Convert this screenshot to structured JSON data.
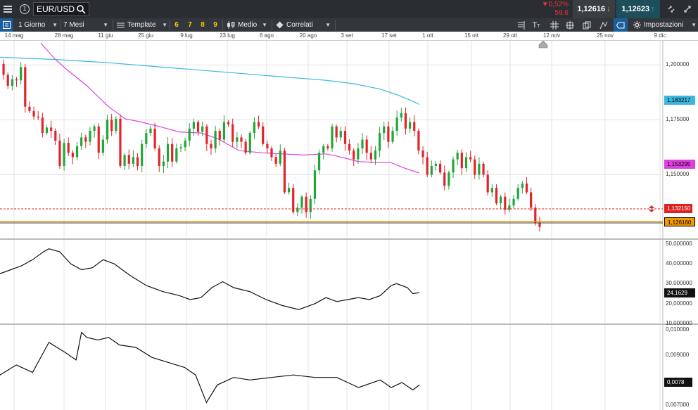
{
  "header": {
    "symbol": "EUR/USD",
    "change_pct": "▼0,52%",
    "change_pts": "59,6",
    "bid": "1,12616",
    "ask": "1,12623"
  },
  "toolbar": {
    "interval": "1 Giorno",
    "range": "7 Mesi",
    "template": "Template",
    "templates": [
      "6",
      "7",
      "8",
      "9"
    ],
    "chart_type": "Medio",
    "correlated": "Correlati",
    "settings": "Impostazioni"
  },
  "colors": {
    "bull": "#21a63a",
    "bear": "#e3232b",
    "ma200": "#3ab8e0",
    "ma50": "#e040e0",
    "last": "#f29a00"
  },
  "date_axis": [
    "14 mag",
    "28 mag",
    "11 giu",
    "25 giu",
    "9 lug",
    "23 lug",
    "6 ago",
    "20 ago",
    "3 set",
    "17 set",
    "1 ott",
    "15 ott",
    "29 ott",
    "12 nov",
    "25 nov",
    "9 dic"
  ],
  "price_axis": [
    "1,200000",
    "1,175000",
    "1,150000"
  ],
  "price_tags": {
    "ma200": "1,183217",
    "ma50": "1,153295",
    "high": "1,132150",
    "last": "1,126160"
  },
  "indicator1_axis": [
    "50,000000",
    "40,000000",
    "30,000000",
    "20,000000",
    "10,000000"
  ],
  "indicator1_value": "24,1629",
  "indicator2_axis": [
    "0,010000",
    "0,009000",
    "0,007000"
  ],
  "indicator2_value": "0,0078",
  "chart_data": [
    {
      "type": "candlestick",
      "y_range": [
        1.121,
        1.211
      ],
      "closes": [
        1.1955,
        1.1905,
        1.1935,
        1.193,
        1.199,
        1.181,
        1.179,
        1.1765,
        1.176,
        1.169,
        1.1715,
        1.17,
        1.1655,
        1.154,
        1.1645,
        1.16,
        1.158,
        1.163,
        1.167,
        1.165,
        1.17,
        1.172,
        1.16,
        1.166,
        1.175,
        1.17,
        1.1755,
        1.154,
        1.159,
        1.155,
        1.158,
        1.154,
        1.164,
        1.169,
        1.171,
        1.162,
        1.154,
        1.156,
        1.164,
        1.156,
        1.162,
        1.1625,
        1.1655,
        1.171,
        1.174,
        1.1695,
        1.172,
        1.164,
        1.162,
        1.17,
        1.166,
        1.174,
        1.173,
        1.165,
        1.167,
        1.165,
        1.16,
        1.169,
        1.174,
        1.172,
        1.164,
        1.162,
        1.158,
        1.155,
        1.161,
        1.142,
        1.144,
        1.133,
        1.135,
        1.14,
        1.133,
        1.139,
        1.152,
        1.16,
        1.163,
        1.162,
        1.172,
        1.167,
        1.17,
        1.164,
        1.161,
        1.157,
        1.162,
        1.166,
        1.16,
        1.157,
        1.161,
        1.169,
        1.172,
        1.165,
        1.17,
        1.176,
        1.178,
        1.171,
        1.174,
        1.17,
        1.161,
        1.158,
        1.15,
        1.154,
        1.155,
        1.151,
        1.145,
        1.151,
        1.157,
        1.16,
        1.153,
        1.158,
        1.157,
        1.15,
        1.155,
        1.15,
        1.142,
        1.144,
        1.137,
        1.14,
        1.134,
        1.136,
        1.139,
        1.144,
        1.146,
        1.142,
        1.135,
        1.1282,
        1.1262
      ]
    },
    {
      "type": "line",
      "name": "ma50",
      "points": [
        [
          0.075,
          1.21
        ],
        [
          0.1,
          1.203
        ],
        [
          0.12,
          1.1985
        ],
        [
          0.16,
          1.1905
        ],
        [
          0.2,
          1.181
        ],
        [
          0.23,
          1.1755
        ],
        [
          0.26,
          1.174
        ],
        [
          0.3,
          1.1715
        ],
        [
          0.33,
          1.1695
        ],
        [
          0.37,
          1.169
        ],
        [
          0.4,
          1.1665
        ],
        [
          0.44,
          1.161
        ],
        [
          0.48,
          1.16
        ],
        [
          0.52,
          1.1595
        ],
        [
          0.56,
          1.159
        ],
        [
          0.6,
          1.1595
        ],
        [
          0.62,
          1.1585
        ],
        [
          0.66,
          1.156
        ],
        [
          0.7,
          1.1555
        ],
        [
          0.72,
          1.1555
        ],
        [
          0.745,
          1.153
        ],
        [
          0.772,
          1.1508
        ]
      ]
    },
    {
      "type": "line",
      "name": "ma200",
      "points": [
        [
          0,
          1.2035
        ],
        [
          0.1,
          1.2025
        ],
        [
          0.2,
          1.201
        ],
        [
          0.3,
          1.199
        ],
        [
          0.4,
          1.197
        ],
        [
          0.5,
          1.195
        ],
        [
          0.6,
          1.193
        ],
        [
          0.65,
          1.1915
        ],
        [
          0.7,
          1.189
        ],
        [
          0.73,
          1.1865
        ],
        [
          0.76,
          1.1835
        ],
        [
          0.772,
          1.182
        ]
      ]
    },
    {
      "type": "line",
      "name": "indicator1",
      "y_range": [
        10,
        52
      ],
      "points": [
        [
          0,
          35
        ],
        [
          0.02,
          37
        ],
        [
          0.04,
          39
        ],
        [
          0.06,
          42
        ],
        [
          0.08,
          46
        ],
        [
          0.09,
          47.5
        ],
        [
          0.11,
          46
        ],
        [
          0.13,
          40
        ],
        [
          0.15,
          37
        ],
        [
          0.17,
          38
        ],
        [
          0.19,
          42
        ],
        [
          0.21,
          40
        ],
        [
          0.24,
          34
        ],
        [
          0.27,
          29
        ],
        [
          0.3,
          26
        ],
        [
          0.33,
          24
        ],
        [
          0.35,
          22
        ],
        [
          0.37,
          23
        ],
        [
          0.39,
          28
        ],
        [
          0.41,
          31
        ],
        [
          0.43,
          28
        ],
        [
          0.46,
          26
        ],
        [
          0.49,
          22
        ],
        [
          0.52,
          19
        ],
        [
          0.55,
          17
        ],
        [
          0.58,
          20
        ],
        [
          0.6,
          23
        ],
        [
          0.62,
          21
        ],
        [
          0.64,
          22
        ],
        [
          0.66,
          23
        ],
        [
          0.68,
          22
        ],
        [
          0.7,
          24
        ],
        [
          0.72,
          29
        ],
        [
          0.73,
          30
        ],
        [
          0.75,
          28
        ],
        [
          0.76,
          25
        ],
        [
          0.772,
          25.5
        ]
      ]
    },
    {
      "type": "line",
      "name": "indicator2",
      "y_range": [
        0.0068,
        0.0102
      ],
      "points": [
        [
          0,
          0.0082
        ],
        [
          0.03,
          0.0086
        ],
        [
          0.06,
          0.0083
        ],
        [
          0.08,
          0.0091
        ],
        [
          0.09,
          0.0095
        ],
        [
          0.12,
          0.0091
        ],
        [
          0.14,
          0.0088
        ],
        [
          0.15,
          0.0099
        ],
        [
          0.16,
          0.0097
        ],
        [
          0.18,
          0.0096
        ],
        [
          0.2,
          0.0097
        ],
        [
          0.22,
          0.0094
        ],
        [
          0.25,
          0.0093
        ],
        [
          0.28,
          0.0089
        ],
        [
          0.31,
          0.0087
        ],
        [
          0.34,
          0.0085
        ],
        [
          0.36,
          0.0082
        ],
        [
          0.38,
          0.0071
        ],
        [
          0.4,
          0.0078
        ],
        [
          0.43,
          0.0081
        ],
        [
          0.46,
          0.008
        ],
        [
          0.5,
          0.0081
        ],
        [
          0.54,
          0.0082
        ],
        [
          0.58,
          0.0081
        ],
        [
          0.62,
          0.0081
        ],
        [
          0.66,
          0.0077
        ],
        [
          0.7,
          0.008
        ],
        [
          0.72,
          0.0077
        ],
        [
          0.74,
          0.0079
        ],
        [
          0.76,
          0.0076
        ],
        [
          0.772,
          0.0078
        ]
      ]
    }
  ]
}
